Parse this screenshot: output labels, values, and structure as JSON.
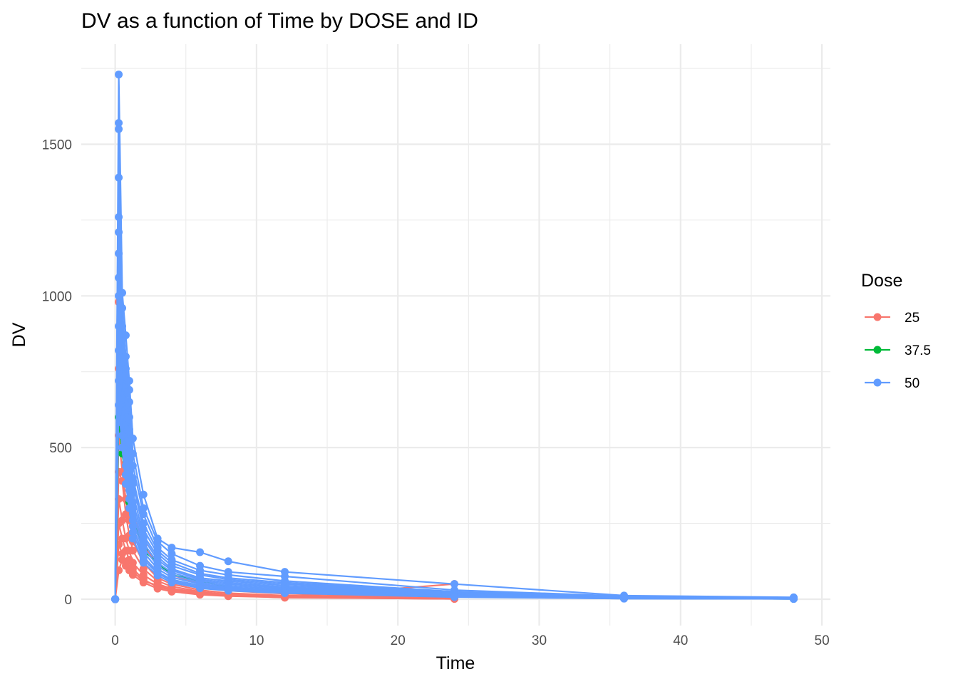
{
  "chart_data": {
    "type": "line",
    "title": "DV as a function of Time by DOSE and ID",
    "xlabel": "Time",
    "ylabel": "DV",
    "xlim": [
      -2.4,
      50.6
    ],
    "ylim": [
      -87,
      1830
    ],
    "x_ticks": [
      0,
      10,
      20,
      30,
      40,
      50
    ],
    "x_tick_labels": [
      "0",
      "10",
      "20",
      "30",
      "40",
      "50"
    ],
    "y_ticks": [
      0,
      500,
      1000,
      1500
    ],
    "y_tick_labels": [
      "0",
      "500",
      "1000",
      "1500"
    ],
    "grid": true,
    "markers": true,
    "legend": {
      "title": "Dose",
      "position": "right",
      "entries": [
        {
          "label": "25",
          "color": "#F8766D"
        },
        {
          "label": "37.5",
          "color": "#00BA38"
        },
        {
          "label": "50",
          "color": "#619CFF"
        }
      ]
    },
    "series": [
      {
        "dose": "25",
        "color": "#F8766D",
        "x": [
          0,
          0.25,
          0.5,
          0.75,
          1,
          1.25,
          2,
          3,
          4,
          6,
          8,
          12,
          24
        ],
        "y": [
          0,
          980,
          780,
          520,
          400,
          300,
          180,
          110,
          80,
          50,
          35,
          20,
          5
        ]
      },
      {
        "dose": "25",
        "color": "#F8766D",
        "x": [
          0,
          0.25,
          0.5,
          0.75,
          1,
          1.25,
          2,
          3,
          4,
          6,
          8,
          12,
          24
        ],
        "y": [
          0,
          760,
          620,
          450,
          330,
          240,
          140,
          90,
          60,
          40,
          28,
          18,
          4
        ]
      },
      {
        "dose": "25",
        "color": "#F8766D",
        "x": [
          0,
          0.25,
          0.5,
          0.75,
          1,
          1.25,
          2,
          3,
          4,
          6,
          8,
          12,
          24
        ],
        "y": [
          0,
          540,
          420,
          330,
          260,
          190,
          120,
          70,
          50,
          30,
          20,
          12,
          3
        ]
      },
      {
        "dose": "25",
        "color": "#F8766D",
        "x": [
          0,
          0.25,
          0.5,
          0.75,
          1,
          1.25,
          2,
          3,
          4,
          6,
          8,
          12,
          24
        ],
        "y": [
          0,
          420,
          390,
          280,
          210,
          160,
          100,
          60,
          42,
          25,
          15,
          10,
          2
        ]
      },
      {
        "dose": "25",
        "color": "#F8766D",
        "x": [
          0,
          0.25,
          0.5,
          0.75,
          1,
          1.25,
          2,
          3,
          4,
          6,
          8,
          12,
          24
        ],
        "y": [
          0,
          330,
          260,
          200,
          160,
          120,
          80,
          50,
          35,
          22,
          12,
          8,
          2
        ]
      },
      {
        "dose": "25",
        "color": "#F8766D",
        "x": [
          0,
          0.25,
          0.5,
          0.75,
          1,
          1.25,
          2,
          3,
          4,
          6,
          8,
          12,
          24
        ],
        "y": [
          0,
          250,
          200,
          160,
          130,
          100,
          65,
          40,
          30,
          18,
          11,
          7,
          50
        ]
      },
      {
        "dose": "25",
        "color": "#F8766D",
        "x": [
          0,
          0.25,
          0.5,
          0.75,
          1,
          1.25,
          2,
          3,
          4,
          6,
          8,
          12,
          24
        ],
        "y": [
          0,
          180,
          150,
          120,
          95,
          80,
          55,
          35,
          25,
          15,
          10,
          6,
          1
        ]
      },
      {
        "dose": "25",
        "color": "#F8766D",
        "x": [
          0,
          0.25,
          0.5,
          0.75,
          1,
          1.25,
          2,
          3,
          4,
          6,
          8,
          12,
          24
        ],
        "y": [
          0,
          95,
          130,
          110,
          100,
          90,
          60,
          45,
          30,
          20,
          12,
          5,
          1
        ]
      },
      {
        "dose": "37.5",
        "color": "#00BA38",
        "x": [
          0,
          0.25,
          0.5,
          1,
          2,
          4,
          8,
          12,
          24,
          36,
          48
        ],
        "y": [
          0,
          600,
          480,
          320,
          160,
          80,
          40,
          22,
          8,
          3,
          1
        ]
      },
      {
        "dose": "50",
        "color": "#619CFF",
        "x": [
          0,
          0.25,
          0.5,
          0.75,
          1,
          1.25,
          2,
          3,
          4,
          6,
          8,
          12,
          24,
          36,
          48
        ],
        "y": [
          0,
          1730,
          1010,
          870,
          720,
          530,
          345,
          200,
          170,
          155,
          125,
          90,
          50,
          12,
          6
        ]
      },
      {
        "dose": "50",
        "color": "#619CFF",
        "x": [
          0,
          0.25,
          0.5,
          0.75,
          1,
          1.25,
          2,
          3,
          4,
          6,
          8,
          12,
          24,
          36,
          48
        ],
        "y": [
          0,
          1570,
          960,
          800,
          690,
          480,
          300,
          190,
          150,
          110,
          90,
          75,
          30,
          10,
          5
        ]
      },
      {
        "dose": "50",
        "color": "#619CFF",
        "x": [
          0,
          0.25,
          0.5,
          0.75,
          1,
          1.25,
          2,
          3,
          4,
          6,
          8,
          12,
          24,
          36,
          48
        ],
        "y": [
          0,
          1550,
          900,
          760,
          650,
          440,
          280,
          170,
          130,
          95,
          80,
          60,
          25,
          8,
          4
        ]
      },
      {
        "dose": "50",
        "color": "#619CFF",
        "x": [
          0,
          0.25,
          0.5,
          0.75,
          1,
          1.25,
          2,
          3,
          4,
          6,
          8,
          12,
          24,
          36,
          48
        ],
        "y": [
          0,
          1390,
          860,
          720,
          600,
          400,
          250,
          160,
          120,
          85,
          70,
          55,
          22,
          7,
          3
        ]
      },
      {
        "dose": "50",
        "color": "#619CFF",
        "x": [
          0,
          0.25,
          0.5,
          0.75,
          1,
          1.25,
          2,
          3,
          4,
          6,
          8,
          12,
          24,
          36,
          48
        ],
        "y": [
          0,
          1260,
          820,
          680,
          560,
          380,
          230,
          150,
          110,
          80,
          65,
          50,
          20,
          6,
          3
        ]
      },
      {
        "dose": "50",
        "color": "#619CFF",
        "x": [
          0,
          0.25,
          0.5,
          0.75,
          1,
          1.25,
          2,
          3,
          4,
          6,
          8,
          12,
          24,
          36,
          48
        ],
        "y": [
          0,
          1210,
          780,
          640,
          520,
          350,
          210,
          140,
          100,
          70,
          60,
          45,
          18,
          5,
          2
        ]
      },
      {
        "dose": "50",
        "color": "#619CFF",
        "x": [
          0,
          0.25,
          0.5,
          0.75,
          1,
          1.25,
          2,
          3,
          4,
          6,
          8,
          12,
          24,
          36,
          48
        ],
        "y": [
          0,
          1140,
          740,
          600,
          480,
          320,
          200,
          130,
          95,
          65,
          55,
          40,
          16,
          5,
          2
        ]
      },
      {
        "dose": "50",
        "color": "#619CFF",
        "x": [
          0,
          0.25,
          0.5,
          0.75,
          1,
          1.25,
          2,
          3,
          4,
          6,
          8,
          12,
          24,
          36,
          48
        ],
        "y": [
          0,
          1060,
          700,
          560,
          450,
          300,
          185,
          120,
          88,
          60,
          50,
          36,
          14,
          4,
          2
        ]
      },
      {
        "dose": "50",
        "color": "#619CFF",
        "x": [
          0,
          0.25,
          0.5,
          0.75,
          1,
          1.25,
          2,
          3,
          4,
          6,
          8,
          12,
          24,
          36,
          48
        ],
        "y": [
          0,
          1000,
          660,
          520,
          420,
          280,
          170,
          110,
          80,
          55,
          45,
          32,
          12,
          4,
          1
        ]
      },
      {
        "dose": "50",
        "color": "#619CFF",
        "x": [
          0,
          0.25,
          0.5,
          0.75,
          1,
          1.25,
          2,
          3,
          4,
          6,
          8,
          12,
          24,
          36,
          48
        ],
        "y": [
          0,
          900,
          620,
          480,
          390,
          260,
          155,
          100,
          72,
          50,
          40,
          28,
          10,
          3,
          1
        ]
      },
      {
        "dose": "50",
        "color": "#619CFF",
        "x": [
          0,
          0.25,
          0.5,
          0.75,
          1,
          1.25,
          2,
          3,
          4,
          6,
          8,
          12,
          24,
          36,
          48
        ],
        "y": [
          0,
          820,
          580,
          440,
          360,
          240,
          140,
          90,
          65,
          45,
          36,
          25,
          9,
          3,
          1
        ]
      },
      {
        "dose": "50",
        "color": "#619CFF",
        "x": [
          0,
          0.25,
          0.5,
          0.75,
          1,
          1.25,
          2,
          3,
          4,
          6,
          8,
          12,
          24,
          36,
          48
        ],
        "y": [
          0,
          720,
          540,
          410,
          330,
          220,
          130,
          85,
          60,
          40,
          32,
          22,
          8,
          2,
          1
        ]
      },
      {
        "dose": "50",
        "color": "#619CFF",
        "x": [
          0,
          0.25,
          0.5,
          0.75,
          1,
          1.25,
          2,
          3,
          4,
          6,
          8,
          12,
          24,
          36,
          48
        ],
        "y": [
          0,
          640,
          500,
          380,
          300,
          200,
          120,
          78,
          55,
          36,
          28,
          20,
          7,
          2,
          1
        ]
      }
    ]
  }
}
